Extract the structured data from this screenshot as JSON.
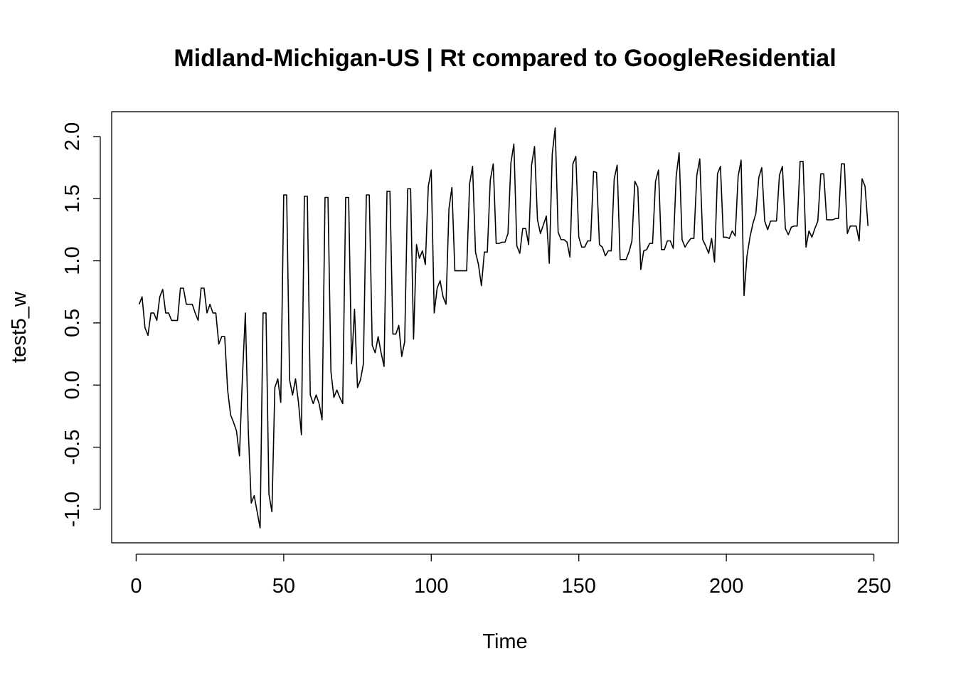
{
  "chart_data": {
    "type": "line",
    "title": "Midland-Michigan-US | Rt compared to GoogleResidential",
    "xlabel": "Time",
    "ylabel": "test5_w",
    "xlim": [
      -8.3,
      258.3
    ],
    "ylim": [
      -1.27,
      2.2
    ],
    "xticks": [
      0,
      50,
      100,
      150,
      200,
      250
    ],
    "xtick_labels": [
      "0",
      "50",
      "100",
      "150",
      "200",
      "250"
    ],
    "yticks": [
      -1.0,
      -0.5,
      0.0,
      0.5,
      1.0,
      1.5,
      2.0
    ],
    "ytick_labels": [
      "-1.0",
      "-0.5",
      "0.0",
      "0.5",
      "1.0",
      "1.5",
      "2.0"
    ],
    "grid": false,
    "legend": "none",
    "series": [
      {
        "color": "#000000",
        "x": [
          1,
          2,
          3,
          4,
          5,
          6,
          7,
          8,
          9,
          10,
          11,
          12,
          13,
          14,
          15,
          16,
          17,
          18,
          19,
          20,
          21,
          22,
          23,
          24,
          25,
          26,
          27,
          28,
          29,
          30,
          31,
          32,
          33,
          34,
          35,
          36,
          37,
          38,
          39,
          40,
          41,
          42,
          43,
          44,
          45,
          46,
          47,
          48,
          49,
          50,
          51,
          52,
          53,
          54,
          55,
          56,
          57,
          58,
          59,
          60,
          61,
          62,
          63,
          64,
          65,
          66,
          67,
          68,
          69,
          70,
          71,
          72,
          73,
          74,
          75,
          76,
          77,
          78,
          79,
          80,
          81,
          82,
          83,
          84,
          85,
          86,
          87,
          88,
          89,
          90,
          91,
          92,
          93,
          94,
          95,
          96,
          97,
          98,
          99,
          100,
          101,
          102,
          103,
          104,
          105,
          106,
          107,
          108,
          109,
          110,
          111,
          112,
          113,
          114,
          115,
          116,
          117,
          118,
          119,
          120,
          121,
          122,
          123,
          124,
          125,
          126,
          127,
          128,
          129,
          130,
          131,
          132,
          133,
          134,
          135,
          136,
          137,
          138,
          139,
          140,
          141,
          142,
          143,
          144,
          145,
          146,
          147,
          148,
          149,
          150,
          151,
          152,
          153,
          154,
          155,
          156,
          157,
          158,
          159,
          160,
          161,
          162,
          163,
          164,
          165,
          166,
          167,
          168,
          169,
          170,
          171,
          172,
          173,
          174,
          175,
          176,
          177,
          178,
          179,
          180,
          181,
          182,
          183,
          184,
          185,
          186,
          187,
          188,
          189,
          190,
          191,
          192,
          193,
          194,
          195,
          196,
          197,
          198,
          199,
          200,
          201,
          202,
          203,
          204,
          205,
          206,
          207,
          208,
          209,
          210,
          211,
          212,
          213,
          214,
          215,
          216,
          217,
          218,
          219,
          220,
          221,
          222,
          223,
          224,
          225,
          226,
          227,
          228,
          229,
          230,
          231,
          232,
          233,
          234,
          235,
          236,
          237,
          238,
          239,
          240,
          241,
          242,
          243,
          244,
          245,
          246,
          247,
          248
        ],
        "y": [
          0.65,
          0.71,
          0.46,
          0.4,
          0.58,
          0.58,
          0.52,
          0.71,
          0.77,
          0.58,
          0.58,
          0.52,
          0.52,
          0.52,
          0.78,
          0.78,
          0.65,
          0.65,
          0.65,
          0.58,
          0.52,
          0.78,
          0.78,
          0.58,
          0.65,
          0.58,
          0.58,
          0.33,
          0.39,
          0.39,
          -0.04,
          -0.24,
          -0.3,
          -0.37,
          -0.57,
          0.06,
          0.58,
          -0.37,
          -0.95,
          -0.89,
          -1.02,
          -1.15,
          0.58,
          0.58,
          -0.88,
          -1.02,
          -0.02,
          0.05,
          -0.14,
          1.53,
          1.53,
          0.04,
          -0.08,
          0.05,
          -0.14,
          -0.4,
          1.52,
          1.52,
          -0.08,
          -0.15,
          -0.08,
          -0.15,
          -0.28,
          1.51,
          1.51,
          0.11,
          -0.1,
          -0.04,
          -0.1,
          -0.15,
          1.51,
          1.51,
          0.17,
          0.61,
          -0.02,
          0.04,
          0.17,
          1.53,
          1.53,
          0.32,
          0.26,
          0.39,
          0.26,
          0.15,
          1.56,
          1.56,
          0.41,
          0.41,
          0.48,
          0.23,
          0.35,
          1.58,
          1.58,
          0.37,
          1.13,
          1.02,
          1.08,
          0.97,
          1.6,
          1.73,
          0.58,
          0.78,
          0.84,
          0.71,
          0.65,
          1.42,
          1.59,
          0.92,
          0.92,
          0.92,
          0.92,
          0.92,
          1.62,
          1.76,
          1.07,
          0.97,
          0.8,
          1.07,
          1.07,
          1.65,
          1.78,
          1.14,
          1.14,
          1.15,
          1.15,
          1.22,
          1.79,
          1.94,
          1.12,
          1.06,
          1.26,
          1.26,
          1.13,
          1.77,
          1.92,
          1.33,
          1.22,
          1.29,
          1.36,
          0.98,
          1.86,
          2.07,
          1.23,
          1.17,
          1.17,
          1.15,
          1.03,
          1.78,
          1.84,
          1.19,
          1.11,
          1.11,
          1.16,
          1.16,
          1.72,
          1.71,
          1.13,
          1.11,
          1.04,
          1.08,
          1.08,
          1.66,
          1.77,
          1.01,
          1.01,
          1.01,
          1.07,
          1.16,
          1.64,
          1.59,
          0.93,
          1.08,
          1.09,
          1.14,
          1.14,
          1.64,
          1.73,
          1.09,
          1.09,
          1.16,
          1.16,
          1.1,
          1.68,
          1.87,
          1.17,
          1.11,
          1.15,
          1.18,
          1.18,
          1.69,
          1.82,
          1.17,
          1.12,
          1.06,
          1.18,
          0.99,
          1.7,
          1.76,
          1.19,
          1.19,
          1.18,
          1.24,
          1.2,
          1.68,
          1.81,
          0.72,
          1.04,
          1.19,
          1.3,
          1.38,
          1.67,
          1.75,
          1.32,
          1.25,
          1.32,
          1.32,
          1.32,
          1.69,
          1.76,
          1.26,
          1.21,
          1.27,
          1.28,
          1.28,
          1.8,
          1.8,
          1.11,
          1.24,
          1.19,
          1.26,
          1.32,
          1.7,
          1.7,
          1.33,
          1.33,
          1.33,
          1.34,
          1.34,
          1.78,
          1.78,
          1.22,
          1.28,
          1.28,
          1.28,
          1.16,
          1.66,
          1.6,
          1.28
        ]
      }
    ]
  }
}
